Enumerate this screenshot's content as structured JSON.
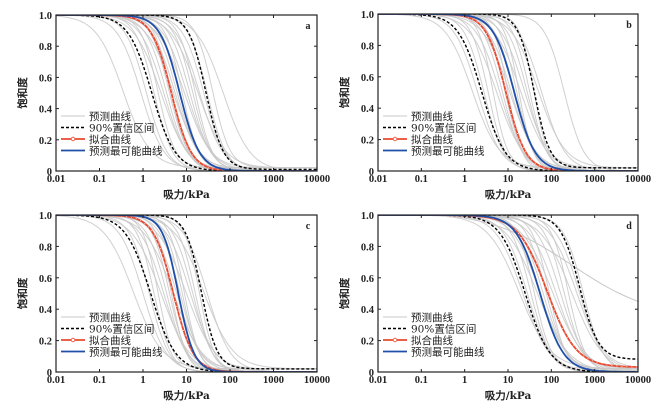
{
  "chart_data": [
    {
      "type": "line",
      "panel": "a",
      "xlabel": "吸力/kPa",
      "ylabel": "饱和度",
      "xscale": "log",
      "xlim": [
        0.01,
        10000
      ],
      "ylim": [
        0,
        1.0
      ],
      "xticks": [
        "0.01",
        "0.1",
        "1",
        "10",
        "100",
        "1000",
        "10000"
      ],
      "yticks": [
        "0",
        "0.2",
        "0.4",
        "0.6",
        "0.8",
        "1.0"
      ],
      "legend_position": "lower-left",
      "series": [
        {
          "name": "预测曲线",
          "role": "prediction-samples",
          "color": "#c8c8c8",
          "midpoints_kPa": [
            0.35,
            0.9,
            1.2,
            1.8,
            2.2,
            2.6,
            3.0,
            3.5,
            4.0,
            4.5,
            5.0,
            5.5,
            6.0,
            7.0,
            8.0,
            9.0,
            10,
            12,
            14,
            16,
            18,
            20,
            25,
            30,
            40,
            70
          ],
          "steepness": [
            1.4,
            1.6,
            1.8,
            2.0,
            2.2
          ]
        },
        {
          "name": "90%置信区间",
          "role": "ci-lower",
          "color": "#000000",
          "midpoint_kPa": 1.6,
          "steepness": 1.6,
          "residual": 0.0
        },
        {
          "name": "90%置信区间",
          "role": "ci-upper",
          "color": "#000000",
          "midpoint_kPa": 28,
          "steepness": 2.2,
          "residual": 0.01
        },
        {
          "name": "拟合曲线",
          "role": "fitted",
          "color": "#e8492f",
          "midpoint_kPa": 4.5,
          "steepness": 1.9,
          "residual": 0.0
        },
        {
          "name": "预测最可能曲线",
          "role": "most-likely",
          "color": "#1f4fa8",
          "midpoint_kPa": 7.0,
          "steepness": 1.9,
          "residual": 0.0
        }
      ]
    },
    {
      "type": "line",
      "panel": "b",
      "xlabel": "吸力/kPa",
      "ylabel": "饱和度",
      "xscale": "log",
      "xlim": [
        0.01,
        10000
      ],
      "ylim": [
        0,
        1.0
      ],
      "xticks": [
        "0.01",
        "0.1",
        "1",
        "10",
        "100",
        "1000",
        "10000"
      ],
      "yticks": [
        "0",
        "0.2",
        "0.4",
        "0.6",
        "0.8",
        "1.0"
      ],
      "legend_position": "lower-left",
      "series": [
        {
          "name": "预测曲线",
          "role": "prediction-samples",
          "color": "#c8c8c8",
          "midpoints_kPa": [
            1.5,
            2.0,
            2.8,
            3.5,
            4.5,
            5.5,
            6.5,
            7.5,
            8.5,
            10,
            11,
            12,
            14,
            16,
            18,
            20,
            24,
            28,
            32,
            40,
            50,
            60,
            200
          ],
          "steepness": [
            1.4,
            1.6,
            1.9,
            2.2,
            2.6
          ]
        },
        {
          "name": "90%置信区间",
          "role": "ci-lower",
          "color": "#000000",
          "midpoint_kPa": 2.5,
          "steepness": 1.6,
          "residual": 0.0
        },
        {
          "name": "90%置信区间",
          "role": "ci-upper",
          "color": "#000000",
          "midpoint_kPa": 40,
          "steepness": 2.4,
          "residual": 0.02
        },
        {
          "name": "拟合曲线",
          "role": "fitted",
          "color": "#e8492f",
          "midpoint_kPa": 9,
          "steepness": 1.9,
          "residual": 0.0
        },
        {
          "name": "预测最可能曲线",
          "role": "most-likely",
          "color": "#1f4fa8",
          "midpoint_kPa": 14,
          "steepness": 1.8,
          "residual": 0.0
        }
      ]
    },
    {
      "type": "line",
      "panel": "c",
      "xlabel": "吸力/kPa",
      "ylabel": "饱和度",
      "xscale": "log",
      "xlim": [
        0.01,
        10000
      ],
      "ylim": [
        0,
        1.0
      ],
      "xticks": [
        "0.01",
        "0.1",
        "1",
        "10",
        "100",
        "1000",
        "10000"
      ],
      "yticks": [
        "0",
        "0.2",
        "0.4",
        "0.6",
        "0.8",
        "1.0"
      ],
      "legend_position": "lower-left",
      "series": [
        {
          "name": "预测曲线",
          "role": "prediction-samples",
          "color": "#c8c8c8",
          "midpoints_kPa": [
            0.6,
            1.0,
            1.4,
            1.8,
            2.2,
            2.6,
            3.0,
            3.5,
            4.0,
            4.5,
            5.0,
            6.0,
            7.0,
            8.0,
            9.0,
            10,
            12,
            14,
            16,
            20,
            25,
            30
          ],
          "steepness": [
            1.3,
            1.6,
            1.9,
            2.2,
            2.5
          ]
        },
        {
          "name": "90%置信区间",
          "role": "ci-lower",
          "color": "#000000",
          "midpoint_kPa": 1.5,
          "steepness": 1.5,
          "residual": 0.0
        },
        {
          "name": "90%置信区间",
          "role": "ci-upper",
          "color": "#000000",
          "midpoint_kPa": 22,
          "steepness": 2.4,
          "residual": 0.02
        },
        {
          "name": "拟合曲线",
          "role": "fitted",
          "color": "#e8492f",
          "midpoint_kPa": 5.0,
          "steepness": 1.9,
          "residual": 0.0
        },
        {
          "name": "预测最可能曲线",
          "role": "most-likely",
          "color": "#1f4fa8",
          "midpoint_kPa": 6.5,
          "steepness": 2.4,
          "residual": 0.0
        }
      ]
    },
    {
      "type": "line",
      "panel": "d",
      "xlabel": "吸力/kPa",
      "ylabel": "饱和度",
      "xscale": "log",
      "xlim": [
        0.01,
        10000
      ],
      "ylim": [
        0,
        1.0
      ],
      "xticks": [
        "0.01",
        "0.1",
        "1",
        "10",
        "100",
        "1000",
        "10000"
      ],
      "yticks": [
        "0",
        "0.2",
        "0.4",
        "0.6",
        "0.8",
        "1.0"
      ],
      "legend_position": "lower-left",
      "series": [
        {
          "name": "预测曲线",
          "role": "prediction-samples",
          "color": "#c8c8c8",
          "midpoints_kPa": [
            18,
            22,
            28,
            34,
            40,
            48,
            55,
            65,
            75,
            90,
            110,
            130,
            160,
            200,
            250,
            300,
            380,
            450,
            550
          ],
          "steepness": [
            1.2,
            1.4,
            1.6,
            1.9,
            2.2
          ]
        },
        {
          "name": "90%置信区间",
          "role": "ci-lower",
          "color": "#000000",
          "midpoint_kPa": 25,
          "steepness": 1.5,
          "residual": 0.0
        },
        {
          "name": "90%置信区间",
          "role": "ci-upper",
          "color": "#000000",
          "midpoint_kPa": 450,
          "steepness": 2.0,
          "residual": 0.08
        },
        {
          "name": "拟合曲线",
          "role": "fitted",
          "color": "#e8492f",
          "midpoint_kPa": 80,
          "steepness": 1.3,
          "residual": 0.03
        },
        {
          "name": "预测最可能曲线",
          "role": "most-likely",
          "color": "#1f4fa8",
          "midpoint_kPa": 55,
          "steepness": 1.6,
          "residual": 0.0
        }
      ]
    }
  ],
  "legend": {
    "items": [
      "预测曲线",
      "90%置信区间",
      "拟合曲线",
      "预测最可能曲线"
    ]
  }
}
